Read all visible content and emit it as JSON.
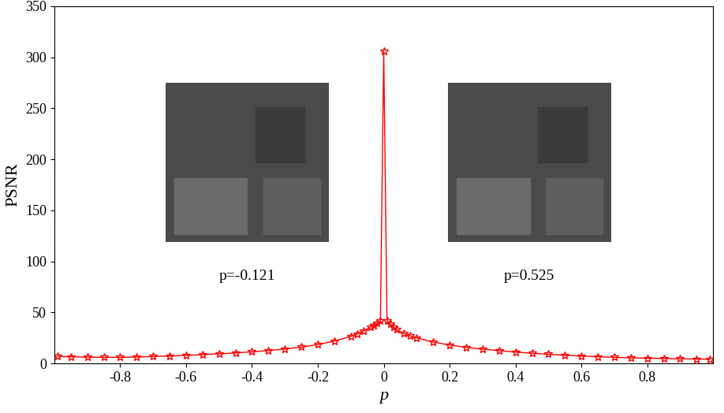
{
  "chart_data": {
    "type": "line",
    "x_label": "p",
    "y_label": "PSNR",
    "annotations": [
      "p=-0.121",
      "p=0.525"
    ],
    "x": [
      -0.99,
      -0.95,
      -0.9,
      -0.85,
      -0.8,
      -0.75,
      -0.7,
      -0.65,
      -0.6,
      -0.55,
      -0.5,
      -0.45,
      -0.4,
      -0.35,
      -0.3,
      -0.25,
      -0.2,
      -0.15,
      -0.1,
      -0.08,
      -0.06,
      -0.04,
      -0.03,
      -0.02,
      -0.01,
      0,
      0.01,
      0.02,
      0.03,
      0.04,
      0.06,
      0.08,
      0.1,
      0.15,
      0.2,
      0.25,
      0.3,
      0.35,
      0.4,
      0.45,
      0.5,
      0.55,
      0.6,
      0.65,
      0.7,
      0.75,
      0.8,
      0.85,
      0.9,
      0.95,
      0.99
    ],
    "values": [
      7.0,
      6.5,
      6.2,
      6.0,
      6.0,
      6.3,
      6.8,
      7.3,
      7.9,
      8.6,
      9.4,
      10.3,
      11.4,
      12.6,
      14.1,
      16.0,
      18.5,
      21.8,
      26.5,
      29.0,
      32.0,
      35.5,
      37.5,
      39.5,
      41.5,
      306,
      42.0,
      38.5,
      35.5,
      33.0,
      29.5,
      27.0,
      25.0,
      21.0,
      18.0,
      15.8,
      14.0,
      12.5,
      11.2,
      10.0,
      9.0,
      8.1,
      7.3,
      6.6,
      6.0,
      5.5,
      5.1,
      4.8,
      4.5,
      4.3,
      4.2
    ],
    "color": "#ff0000",
    "marker": "star",
    "line_style": "solid",
    "xlim": [
      -1,
      1
    ],
    "xticks": [
      -0.8,
      -0.6,
      -0.4,
      -0.2,
      0,
      0.2,
      0.4,
      0.6,
      0.8
    ],
    "ylim": [
      0,
      350
    ],
    "yticks": [
      0,
      50,
      100,
      150,
      200,
      250,
      300,
      350
    ],
    "grid": false
  }
}
